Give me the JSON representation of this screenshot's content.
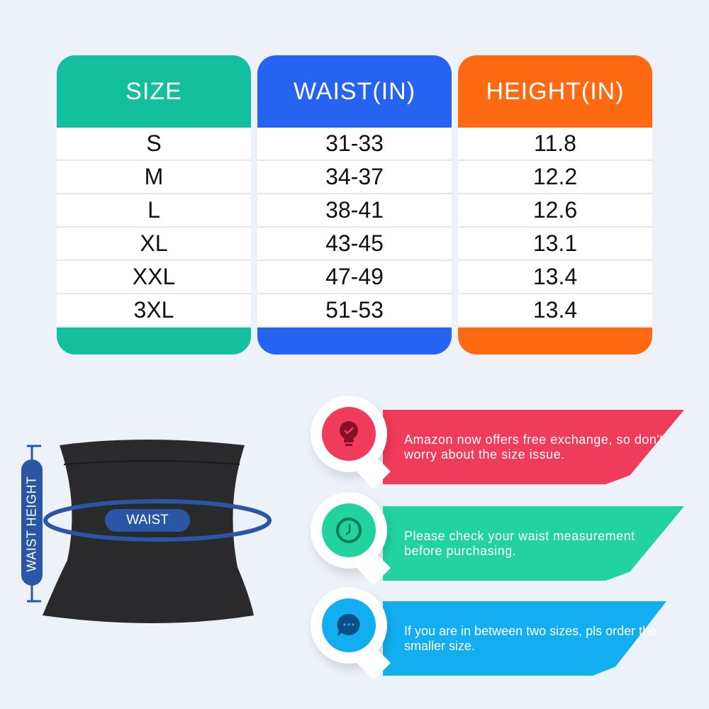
{
  "table": {
    "columns": [
      {
        "header": "SIZE",
        "color": "#13bf9c",
        "values": [
          "S",
          "M",
          "L",
          "XL",
          "XXL",
          "3XL"
        ]
      },
      {
        "header": "WAIST(IN)",
        "color": "#2563f0",
        "values": [
          "31-33",
          "34-37",
          "38-41",
          "43-45",
          "47-49",
          "51-53"
        ]
      },
      {
        "header": "HEIGHT(IN)",
        "color": "#fd6a12",
        "values": [
          "11.8",
          "12.2",
          "12.6",
          "13.1",
          "13.4",
          "13.4"
        ]
      }
    ]
  },
  "product": {
    "waist_label": "WAIST",
    "waist_height_label": "WAIST HEIGHT",
    "accent": "#2b56a6"
  },
  "tips": [
    {
      "icon": "lightbulb-check-icon",
      "text": "Amazon now offers free exchange, so don't worry about the size issue.",
      "color": "#ef3c5a",
      "icon_color": "#8a0f25"
    },
    {
      "icon": "clock-icon",
      "text": "Please check your waist measurement before purchasing.",
      "color": "#22d3a0",
      "icon_color": "#0d7a52"
    },
    {
      "icon": "chat-bubble-icon",
      "text": "If you are in between two sizes, pls order the smaller size.",
      "color": "#12aef0",
      "icon_color": "#0b4e85"
    }
  ]
}
